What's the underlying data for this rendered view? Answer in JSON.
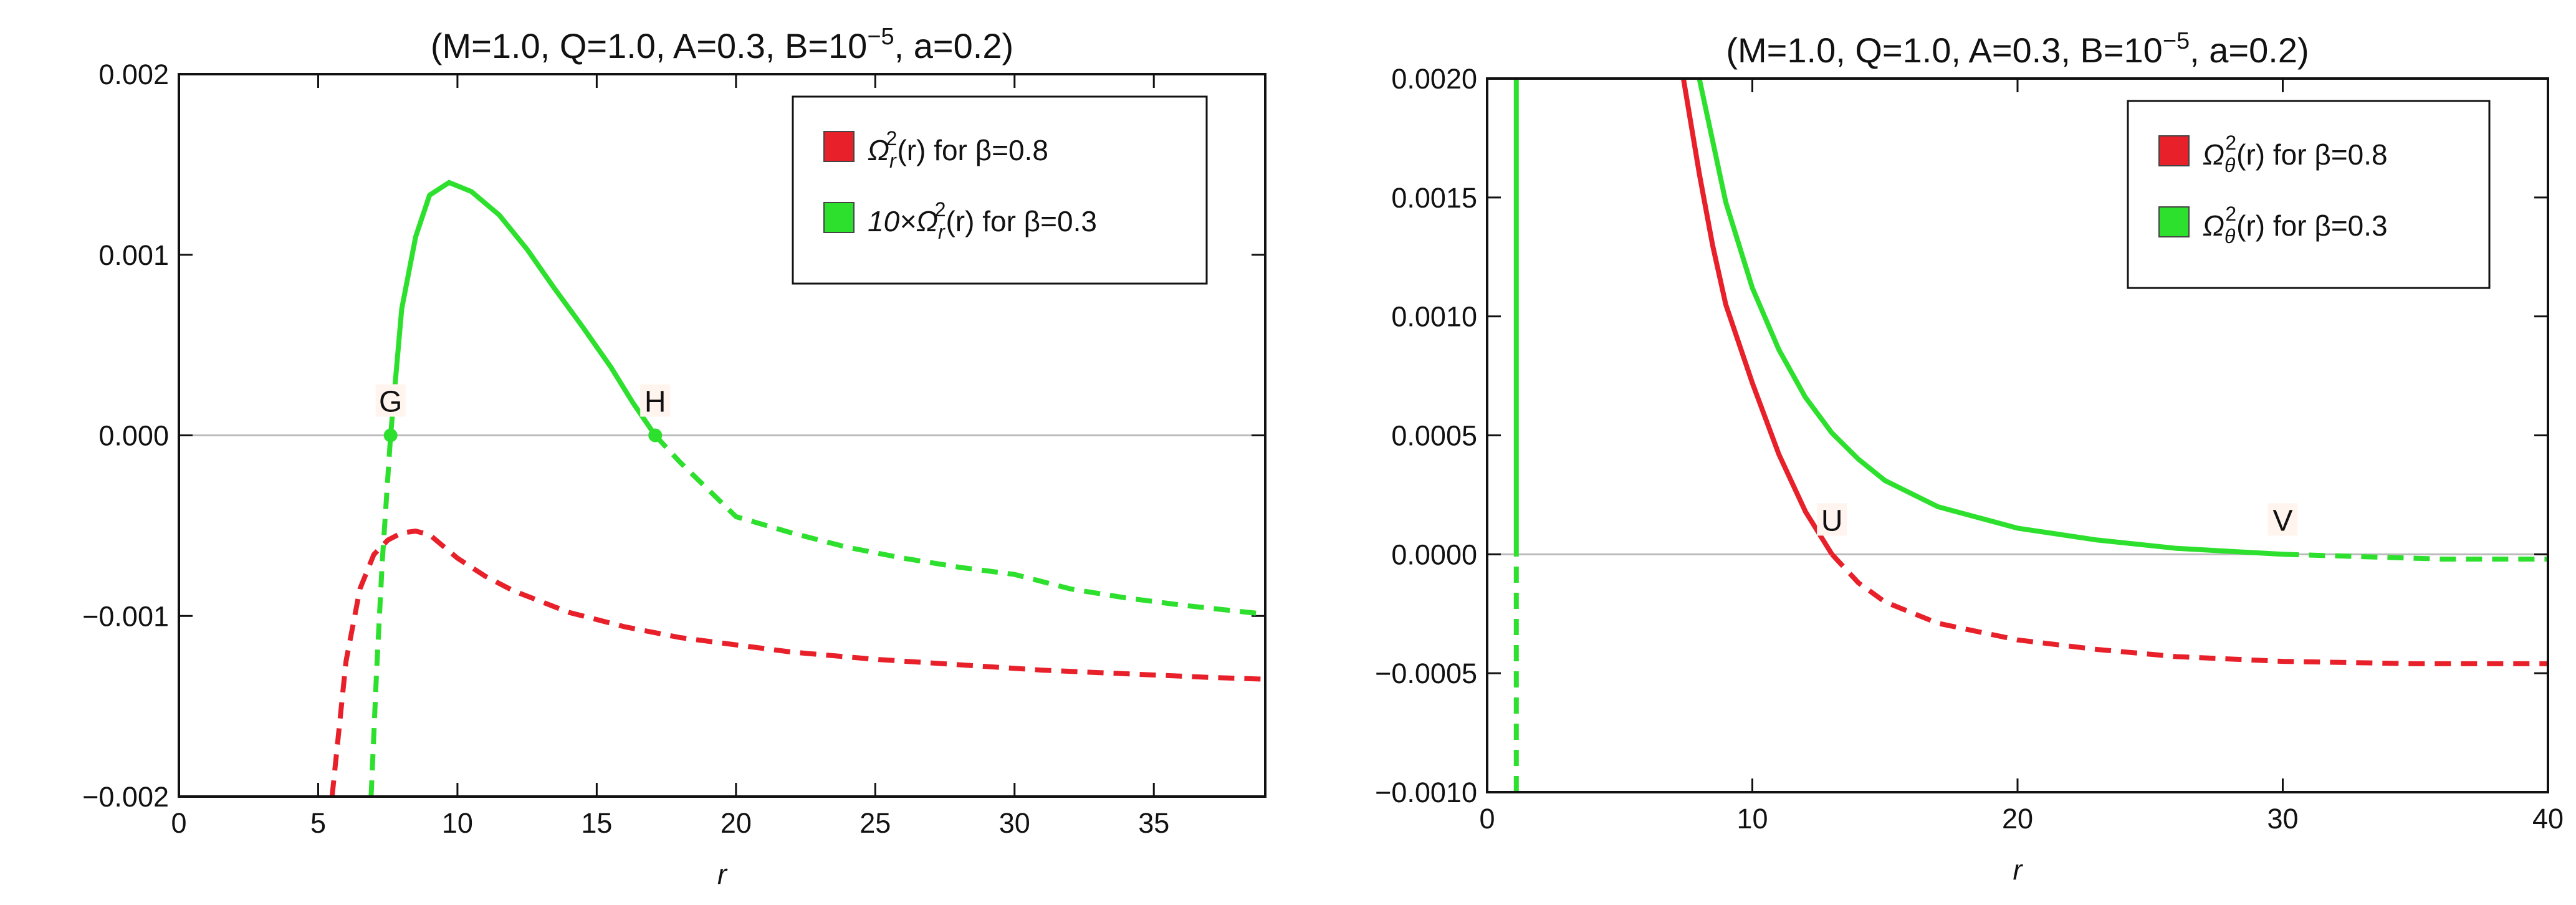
{
  "chart_data": [
    {
      "type": "line",
      "title": [
        "(M=1.0, Q=1.0, A=0.3, B=10",
        "−5",
        ", a=0.2)"
      ],
      "xlabel": "r",
      "xlim": [
        0,
        39
      ],
      "xticks": [
        0,
        5,
        10,
        15,
        20,
        25,
        30,
        35
      ],
      "ylim": [
        -0.002,
        0.002
      ],
      "yticks": [
        {
          "value": -0.002,
          "label": "−0.002"
        },
        {
          "value": -0.001,
          "label": "−0.001"
        },
        {
          "value": 0,
          "label": "0.000"
        },
        0.001,
        0.002
      ],
      "legend": "top-right",
      "series": [
        {
          "name": [
            "Ω",
            "r",
            "2",
            "(r) for β=0.8"
          ],
          "color": "#e8202a",
          "x": [
            5.5,
            6,
            6.5,
            7,
            7.5,
            8,
            8.5,
            9,
            10,
            11,
            12,
            14,
            16,
            18,
            20,
            22,
            25,
            28,
            31,
            34,
            37,
            39
          ],
          "values": [
            -0.002,
            -0.00125,
            -0.00085,
            -0.00066,
            -0.00058,
            -0.00054,
            -0.00053,
            -0.00055,
            -0.00068,
            -0.00078,
            -0.00086,
            -0.00098,
            -0.00106,
            -0.00112,
            -0.00116,
            -0.0012,
            -0.00124,
            -0.00127,
            -0.0013,
            -0.00132,
            -0.00134,
            -0.00135
          ]
        },
        {
          "name": [
            "10×Ω",
            "r",
            "2",
            "(r) for β=0.3"
          ],
          "color": "#2ee02e",
          "x": [
            6.9,
            7.1,
            7.3,
            7.6,
            8,
            8.5,
            9,
            9.7,
            10.5,
            11.5,
            12.5,
            13.5,
            14.5,
            15.5,
            16.3,
            17.1,
            18,
            19,
            20,
            22,
            24,
            26,
            28,
            30,
            32,
            34,
            36,
            39
          ],
          "values": [
            -0.002,
            -0.0013,
            -0.0007,
            0,
            0.0007,
            0.0011,
            0.00133,
            0.0014,
            0.00135,
            0.00122,
            0.00103,
            0.00081,
            0.0006,
            0.00038,
            0.00018,
            0,
            -0.00015,
            -0.0003,
            -0.00045,
            -0.00054,
            -0.00062,
            -0.00068,
            -0.00073,
            -0.00077,
            -0.00085,
            -0.0009,
            -0.00094,
            -0.00099
          ]
        }
      ],
      "annotations": [
        {
          "text": "G",
          "x": 7.6,
          "y": 0,
          "color": "#2ee02e",
          "dot": true
        },
        {
          "text": "H",
          "x": 17.1,
          "y": 0,
          "color": "#2ee02e",
          "dot": true
        }
      ]
    },
    {
      "type": "line",
      "title": [
        "(M=1.0, Q=1.0, A=0.3, B=10",
        "−5",
        ", a=0.2)"
      ],
      "xlabel": "r",
      "xlim": [
        0,
        40
      ],
      "xticks": [
        0,
        10,
        20,
        30,
        40
      ],
      "ylim": [
        -0.001,
        0.002
      ],
      "yticks": [
        {
          "value": -0.001,
          "label": "−0.0010"
        },
        {
          "value": -0.0005,
          "label": "−0.0005"
        },
        {
          "value": 0,
          "label": "0.0000"
        },
        {
          "value": 0.0005,
          "label": "0.0005"
        },
        {
          "value": 0.001,
          "label": "0.0010"
        },
        {
          "value": 0.0015,
          "label": "0.0015"
        },
        {
          "value": 0.002,
          "label": "0.0020"
        }
      ],
      "legend": "top-right",
      "series": [
        {
          "name": [
            "Ω",
            "θ",
            "2",
            "(r) for β=0.8"
          ],
          "color": "#e8202a",
          "x": [
            7.4,
            8,
            8.5,
            9,
            10,
            11,
            12,
            13,
            14,
            15,
            17,
            20,
            23,
            26,
            30,
            35,
            40
          ],
          "values": [
            0.002,
            0.0016,
            0.0013,
            0.00105,
            0.00072,
            0.00042,
            0.00018,
            0,
            -0.00012,
            -0.0002,
            -0.00029,
            -0.00036,
            -0.0004,
            -0.00043,
            -0.00045,
            -0.00046,
            -0.00046
          ]
        },
        {
          "name": [
            "Ω",
            "θ",
            "2",
            "(r) for β=0.3"
          ],
          "color": "#2ee02e",
          "x": [
            1.1,
            1.1,
            1.1,
            4,
            8,
            9,
            10,
            11,
            12,
            13,
            14,
            15,
            17,
            20,
            23,
            26,
            30,
            33,
            36,
            40
          ],
          "values": [
            -0.001,
            0,
            0.002,
            null,
            0.002,
            0.00148,
            0.00112,
            0.00086,
            0.00066,
            0.00051,
            0.0004,
            0.00031,
            0.0002,
            0.00011,
            6e-05,
            2.5e-05,
            0,
            -1e-05,
            -2e-05,
            -2e-05
          ]
        }
      ],
      "annotations": [
        {
          "text": "U",
          "x": 13,
          "y": 0,
          "color": "#e8202a",
          "dot": false
        },
        {
          "text": "V",
          "x": 30,
          "y": 0,
          "color": "#2ee02e",
          "dot": false
        }
      ]
    }
  ]
}
